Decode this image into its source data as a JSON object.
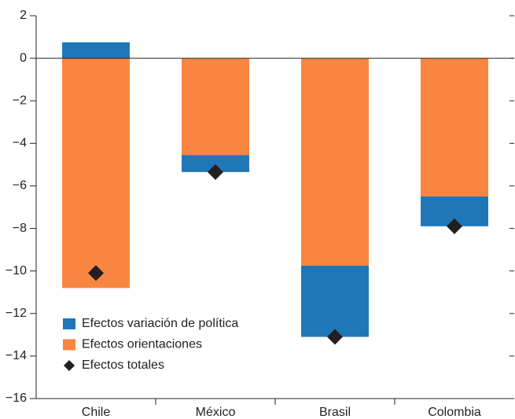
{
  "chart_data": {
    "type": "bar",
    "stacked": true,
    "categories": [
      "Chile",
      "México",
      "Brasil",
      "Colombia"
    ],
    "series": [
      {
        "name": "Efectos variación de política",
        "color": "#1f77b8",
        "values": [
          0.75,
          -0.8,
          -3.35,
          -1.4
        ]
      },
      {
        "name": "Efectos orientaciones",
        "color": "#f98540",
        "values": [
          -10.8,
          -4.55,
          -9.75,
          -6.5
        ]
      },
      {
        "name": "Efectos totales",
        "type": "scatter",
        "color": "#231f20",
        "values": [
          -10.1,
          -5.35,
          -13.1,
          -7.9
        ]
      }
    ],
    "ylim": [
      -16,
      2
    ],
    "yticks": [
      {
        "value": -16,
        "label": "−16"
      },
      {
        "value": -14,
        "label": "−14"
      },
      {
        "value": -12,
        "label": "−12"
      },
      {
        "value": -10,
        "label": "−10"
      },
      {
        "value": -8,
        "label": "−8"
      },
      {
        "value": -6,
        "label": "−6"
      },
      {
        "value": -4,
        "label": "−4"
      },
      {
        "value": -2,
        "label": "−2"
      },
      0,
      2
    ],
    "legend": "lower left"
  }
}
